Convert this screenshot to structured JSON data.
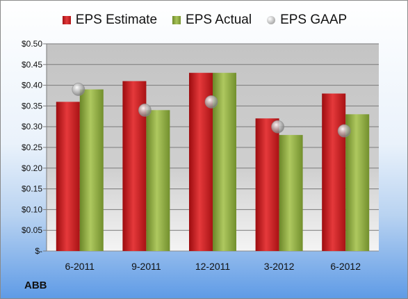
{
  "company": "ABB",
  "legend": {
    "estimate": "EPS Estimate",
    "actual": "EPS Actual",
    "gaap": "EPS GAAP"
  },
  "colors": {
    "estimate": "#d42a2c",
    "actual": "#93b24a",
    "gaap": "#c8c8c8"
  },
  "chart_data": {
    "type": "bar",
    "categories": [
      "6-2011",
      "9-2011",
      "12-2011",
      "3-2012",
      "6-2012"
    ],
    "series": [
      {
        "name": "EPS Estimate",
        "kind": "bar",
        "values": [
          0.36,
          0.41,
          0.43,
          0.32,
          0.38
        ]
      },
      {
        "name": "EPS Actual",
        "kind": "bar",
        "values": [
          0.39,
          0.34,
          0.43,
          0.28,
          0.33
        ]
      },
      {
        "name": "EPS GAAP",
        "kind": "marker",
        "values": [
          0.39,
          0.34,
          0.36,
          0.3,
          0.29
        ]
      }
    ],
    "yticks": [
      "$-",
      "$0.05",
      "$0.10",
      "$0.15",
      "$0.20",
      "$0.25",
      "$0.30",
      "$0.35",
      "$0.40",
      "$0.45",
      "$0.50"
    ],
    "ylim": [
      0,
      0.5
    ],
    "grid": true,
    "legend_position": "top"
  }
}
